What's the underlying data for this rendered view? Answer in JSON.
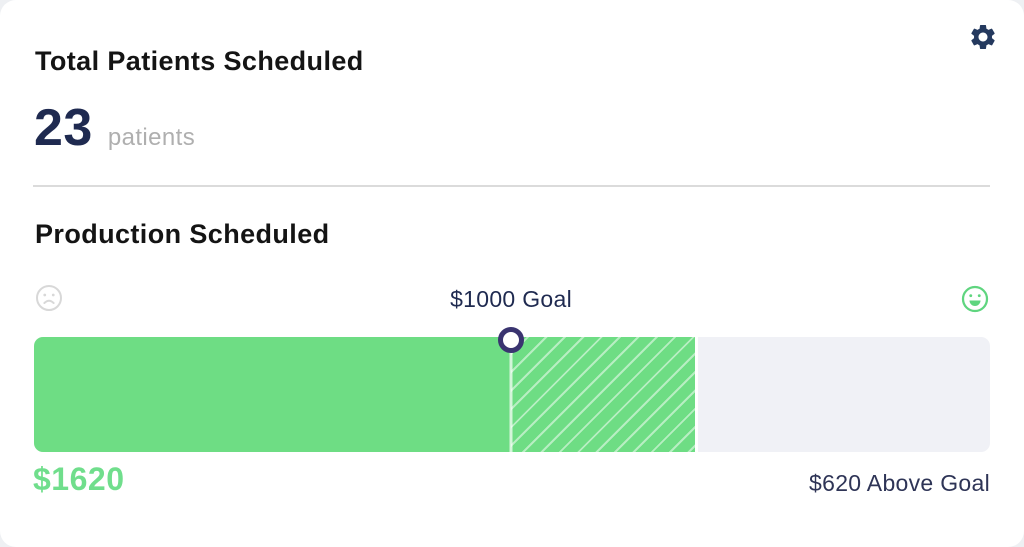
{
  "colors": {
    "green": "#6EDD84",
    "green_text": "#70DE8C",
    "track": "#F0F1F6",
    "navy": "#1F2A50",
    "marker": "#3A3470",
    "gear": "#24395E",
    "sad": "#D8D8D8",
    "happy": "#5FD57F"
  },
  "icons": {
    "settings": "gear-icon",
    "left_gauge": "sad-face-icon",
    "right_gauge": "happy-face-icon"
  },
  "patients": {
    "title": "Total Patients Scheduled",
    "value": "23",
    "unit": "patients"
  },
  "production": {
    "title": "Production Scheduled",
    "goal_label": "$1000 Goal",
    "current_label": "$1620",
    "delta_label": "$620 Above Goal",
    "gauge": {
      "goal_value": 1000,
      "current_value": 1620,
      "above_goal": 620,
      "goal_percent": 49.9,
      "fill_percent": 69.1
    }
  }
}
